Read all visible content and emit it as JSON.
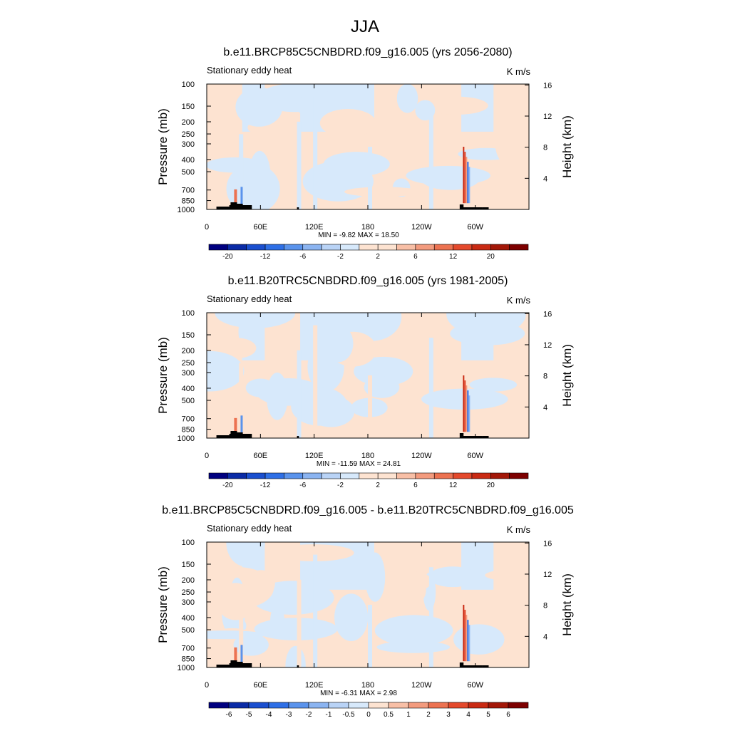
{
  "page_title": "JJA",
  "colors": {
    "neg_light": "#d7e9fb",
    "pos_light": "#fde3d1",
    "topography": "#000000"
  },
  "palette": [
    "#000080",
    "#0a2ba6",
    "#1a4fcf",
    "#2e6fe6",
    "#5a93ec",
    "#8bb4f1",
    "#b9d3f6",
    "#d7e9fb",
    "#fde3d1",
    "#f8bfa6",
    "#f39b7e",
    "#ec7251",
    "#e4492c",
    "#c92a13",
    "#a31708",
    "#7d0000"
  ],
  "panels": [
    {
      "title": "b.e11.BRCP85C5CNBDRD.f09_g16.005 (yrs 2056-2080)",
      "left_label": "Stationary eddy heat",
      "right_label": "K m/s",
      "y_label_left": "Pressure (mb)",
      "y_label_right": "Height (km)",
      "stats": "MIN =  -9.82  MAX =  18.50",
      "colorbar_labels": [
        "-20",
        "-12",
        "-6",
        "-2",
        "2",
        "6",
        "12",
        "20"
      ]
    },
    {
      "title": "b.e11.B20TRC5CNBDRD.f09_g16.005 (yrs 1981-2005)",
      "left_label": "Stationary eddy heat",
      "right_label": "K m/s",
      "y_label_left": "Pressure (mb)",
      "y_label_right": "Height (km)",
      "stats": "MIN = -11.59  MAX =  24.81",
      "colorbar_labels": [
        "-20",
        "-12",
        "-6",
        "-2",
        "2",
        "6",
        "12",
        "20"
      ]
    },
    {
      "title": "b.e11.BRCP85C5CNBDRD.f09_g16.005 - b.e11.B20TRC5CNBDRD.f09_g16.005",
      "left_label": "Stationary eddy heat",
      "right_label": "K m/s",
      "y_label_left": "Pressure (mb)",
      "y_label_right": "Height (km)",
      "stats": "MIN =  -6.31  MAX =   2.98",
      "colorbar_labels": [
        "-6",
        "-5",
        "-4",
        "-3",
        "-2",
        "-1",
        "-0.5",
        "0",
        "0.5",
        "1",
        "2",
        "3",
        "4",
        "5",
        "6"
      ]
    }
  ],
  "chart_data": [
    {
      "type": "heatmap",
      "title": "b.e11.BRCP85C5CNBDRD.f09_g16.005 (yrs 2056-2080)",
      "ylabel": "Pressure (mb)",
      "y2label": "Height (km)",
      "units": "K m/s",
      "x_ticks": [
        "0",
        "60E",
        "120E",
        "180",
        "120W",
        "60W"
      ],
      "x_tick_values": [
        0,
        60,
        120,
        180,
        240,
        300
      ],
      "xlim": [
        0,
        360
      ],
      "y_ticks": [
        "100",
        "150",
        "200",
        "250",
        "300",
        "400",
        "500",
        "700",
        "850",
        "1000"
      ],
      "y_tick_values": [
        100,
        150,
        200,
        250,
        300,
        400,
        500,
        700,
        850,
        1000
      ],
      "ylim": [
        1000,
        100
      ],
      "y_scale": "log",
      "y2_ticks": [
        "4",
        "8",
        "12",
        "16"
      ],
      "y2_tick_values": [
        4,
        8,
        12,
        16
      ],
      "min": -9.82,
      "max": 18.5,
      "contour_levels": [
        -20,
        -16,
        -12,
        -8,
        -6,
        -4,
        -2,
        -1,
        1,
        2,
        4,
        6,
        8,
        12,
        16,
        20
      ]
    },
    {
      "type": "heatmap",
      "title": "b.e11.B20TRC5CNBDRD.f09_g16.005 (yrs 1981-2005)",
      "ylabel": "Pressure (mb)",
      "y2label": "Height (km)",
      "units": "K m/s",
      "x_ticks": [
        "0",
        "60E",
        "120E",
        "180",
        "120W",
        "60W"
      ],
      "x_tick_values": [
        0,
        60,
        120,
        180,
        240,
        300
      ],
      "xlim": [
        0,
        360
      ],
      "y_ticks": [
        "100",
        "150",
        "200",
        "250",
        "300",
        "400",
        "500",
        "700",
        "850",
        "1000"
      ],
      "y_tick_values": [
        100,
        150,
        200,
        250,
        300,
        400,
        500,
        700,
        850,
        1000
      ],
      "ylim": [
        1000,
        100
      ],
      "y_scale": "log",
      "y2_ticks": [
        "4",
        "8",
        "12",
        "16"
      ],
      "y2_tick_values": [
        4,
        8,
        12,
        16
      ],
      "min": -11.59,
      "max": 24.81,
      "contour_levels": [
        -20,
        -16,
        -12,
        -8,
        -6,
        -4,
        -2,
        -1,
        1,
        2,
        4,
        6,
        8,
        12,
        16,
        20
      ]
    },
    {
      "type": "heatmap",
      "title": "b.e11.BRCP85C5CNBDRD.f09_g16.005 - b.e11.B20TRC5CNBDRD.f09_g16.005",
      "ylabel": "Pressure (mb)",
      "y2label": "Height (km)",
      "units": "K m/s",
      "x_ticks": [
        "0",
        "60E",
        "120E",
        "180",
        "120W",
        "60W"
      ],
      "x_tick_values": [
        0,
        60,
        120,
        180,
        240,
        300
      ],
      "xlim": [
        0,
        360
      ],
      "y_ticks": [
        "100",
        "150",
        "200",
        "250",
        "300",
        "400",
        "500",
        "700",
        "850",
        "1000"
      ],
      "y_tick_values": [
        100,
        150,
        200,
        250,
        300,
        400,
        500,
        700,
        850,
        1000
      ],
      "ylim": [
        1000,
        100
      ],
      "y_scale": "log",
      "y2_ticks": [
        "4",
        "8",
        "12",
        "16"
      ],
      "y2_tick_values": [
        4,
        8,
        12,
        16
      ],
      "min": -6.31,
      "max": 2.98,
      "contour_levels": [
        -6,
        -5,
        -4,
        -3,
        -2,
        -1,
        -0.5,
        0,
        0.5,
        1,
        2,
        3,
        4,
        5,
        6
      ]
    }
  ]
}
